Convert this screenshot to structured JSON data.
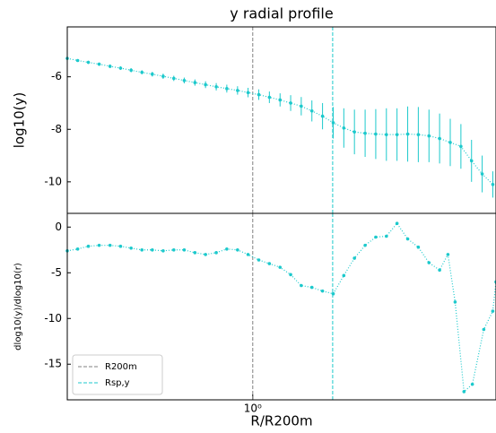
{
  "chart_data": [
    {
      "type": "line",
      "title": "y radial profile",
      "ylabel": "log10(y)",
      "xscale": "log",
      "xlim": [
        0.3,
        4.85
      ],
      "ylim": [
        -11.2,
        -4.1
      ],
      "yticks": [
        -10,
        -8,
        -6
      ],
      "x": [
        0.3,
        0.321,
        0.344,
        0.369,
        0.396,
        0.424,
        0.454,
        0.487,
        0.521,
        0.559,
        0.599,
        0.641,
        0.687,
        0.736,
        0.789,
        0.845,
        0.906,
        0.97,
        1.04,
        1.114,
        1.194,
        1.279,
        1.37,
        1.468,
        1.573,
        1.686,
        1.806,
        1.935,
        2.074,
        2.222,
        2.381,
        2.551,
        2.734,
        2.929,
        3.139,
        3.363,
        3.604,
        3.862,
        4.138,
        4.434,
        4.751
      ],
      "series": [
        {
          "color": "#1cc9cc",
          "values": [
            -5.3,
            -5.38,
            -5.45,
            -5.52,
            -5.6,
            -5.67,
            -5.75,
            -5.83,
            -5.9,
            -5.98,
            -6.06,
            -6.14,
            -6.22,
            -6.3,
            -6.38,
            -6.45,
            -6.52,
            -6.6,
            -6.68,
            -6.78,
            -6.88,
            -7.0,
            -7.12,
            -7.3,
            -7.5,
            -7.75,
            -7.95,
            -8.1,
            -8.15,
            -8.18,
            -8.2,
            -8.2,
            -8.18,
            -8.2,
            -8.25,
            -8.35,
            -8.5,
            -8.65,
            -9.2,
            -9.7,
            -10.1
          ],
          "errors": [
            0.05,
            0.05,
            0.06,
            0.06,
            0.07,
            0.07,
            0.08,
            0.08,
            0.09,
            0.1,
            0.1,
            0.11,
            0.12,
            0.13,
            0.14,
            0.15,
            0.16,
            0.18,
            0.2,
            0.22,
            0.25,
            0.3,
            0.35,
            0.4,
            0.5,
            0.6,
            0.75,
            0.85,
            0.9,
            0.95,
            1.0,
            1.0,
            1.05,
            1.05,
            1.0,
            0.95,
            0.9,
            0.85,
            0.8,
            0.7,
            0.5
          ]
        }
      ],
      "vlines": [
        {
          "name": "R200m",
          "x": 1,
          "color": "#808080"
        },
        {
          "name": "Rsp,y",
          "x": 1.68,
          "color": "#1cc9cc"
        }
      ]
    },
    {
      "type": "line",
      "xlabel": "R/R200m",
      "ylabel": "dlog10(y)/dlog10(r)",
      "xscale": "log",
      "xlim": [
        0.3,
        4.85
      ],
      "ylim": [
        -18.9,
        1.5
      ],
      "yticks": [
        -15,
        -10,
        -5,
        0
      ],
      "xticks": [
        {
          "value": 1,
          "label": "10⁰"
        }
      ],
      "x": [
        0.3,
        0.321,
        0.344,
        0.369,
        0.396,
        0.424,
        0.454,
        0.487,
        0.521,
        0.559,
        0.599,
        0.641,
        0.687,
        0.736,
        0.789,
        0.845,
        0.906,
        0.97,
        1.04,
        1.114,
        1.194,
        1.279,
        1.37,
        1.468,
        1.573,
        1.686,
        1.806,
        1.935,
        2.074,
        2.222,
        2.381,
        2.551,
        2.734,
        2.929,
        3.139,
        3.363,
        3.55,
        3.72,
        3.94,
        4.16,
        4.48,
        4.75,
        4.85
      ],
      "series": [
        {
          "color": "#1cc9cc",
          "values": [
            -2.6,
            -2.4,
            -2.1,
            -2.0,
            -2.0,
            -2.1,
            -2.3,
            -2.5,
            -2.5,
            -2.6,
            -2.5,
            -2.5,
            -2.8,
            -3.0,
            -2.8,
            -2.4,
            -2.5,
            -3.0,
            -3.6,
            -4.0,
            -4.4,
            -5.2,
            -6.4,
            -6.6,
            -7.0,
            -7.3,
            -5.3,
            -3.4,
            -2.0,
            -1.1,
            -1.0,
            0.4,
            -1.3,
            -2.2,
            -3.9,
            -4.7,
            -3.0,
            -8.2,
            -18.0,
            -17.2,
            -11.2,
            -9.2,
            -6.0
          ]
        }
      ],
      "vlines": [
        {
          "name": "R200m",
          "x": 1,
          "color": "#808080"
        },
        {
          "name": "Rsp,y",
          "x": 1.68,
          "color": "#1cc9cc"
        }
      ],
      "legend": "lower left"
    }
  ]
}
